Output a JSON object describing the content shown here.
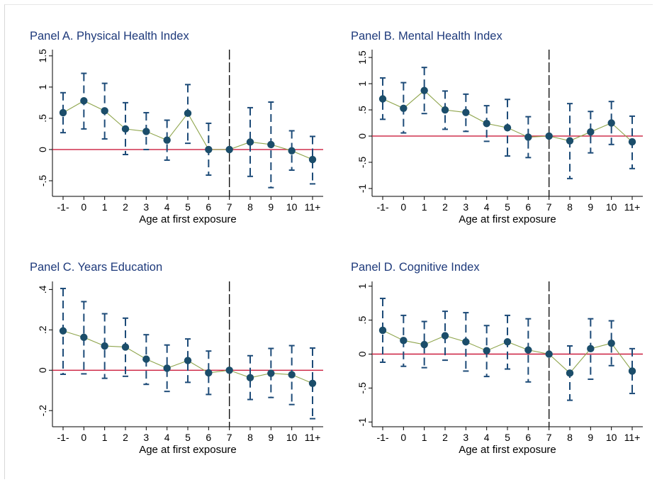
{
  "colors": {
    "panel_title": "#1e3a7b",
    "zero_line": "#cc1f3f",
    "marker": "#1b4d6a",
    "ci": "#1d4b78",
    "connector": "#8fa54d",
    "reference_line": "#111111"
  },
  "chart_data": [
    {
      "type": "scatter",
      "title": "Panel A. Physical Health Index",
      "xlabel": "Age at first exposure",
      "ylabel": "",
      "categories": [
        "-1-",
        "0",
        "1",
        "2",
        "3",
        "4",
        "5",
        "6",
        "7",
        "8",
        "9",
        "10",
        "11+"
      ],
      "values": [
        0.59,
        0.78,
        0.62,
        0.33,
        0.29,
        0.15,
        0.58,
        0.0,
        0.0,
        0.12,
        0.08,
        -0.02,
        -0.16
      ],
      "ci_low": [
        0.27,
        0.33,
        0.17,
        -0.08,
        0.0,
        -0.17,
        0.1,
        -0.41,
        0.0,
        -0.43,
        -0.61,
        -0.33,
        -0.55
      ],
      "ci_high": [
        0.91,
        1.22,
        1.06,
        0.75,
        0.59,
        0.47,
        1.04,
        0.42,
        0.0,
        0.67,
        0.76,
        0.3,
        0.21
      ],
      "ylim": [
        -0.75,
        1.6
      ],
      "yticks": [
        -0.5,
        0,
        0.5,
        1,
        1.5
      ],
      "ytick_labels": [
        "-.5",
        "0",
        ".5",
        "1",
        "1.5"
      ],
      "reference_line_at": "7",
      "zero_line": true,
      "grid": false
    },
    {
      "type": "scatter",
      "title": "Panel B. Mental Health Index",
      "xlabel": "Age at first exposure",
      "ylabel": "",
      "categories": [
        "-1-",
        "0",
        "1",
        "2",
        "3",
        "4",
        "5",
        "6",
        "7",
        "8",
        "9",
        "10",
        "11+"
      ],
      "values": [
        0.71,
        0.53,
        0.87,
        0.5,
        0.45,
        0.24,
        0.16,
        -0.02,
        0.0,
        -0.09,
        0.08,
        0.25,
        -0.11
      ],
      "ci_low": [
        0.32,
        0.06,
        0.43,
        0.13,
        0.09,
        -0.1,
        -0.38,
        -0.41,
        0.0,
        -0.81,
        -0.32,
        -0.16,
        -0.62
      ],
      "ci_high": [
        1.11,
        1.02,
        1.31,
        0.86,
        0.8,
        0.58,
        0.7,
        0.37,
        0.0,
        0.62,
        0.47,
        0.66,
        0.38
      ],
      "ylim": [
        -1.15,
        1.65
      ],
      "yticks": [
        -1,
        -0.5,
        0,
        0.5,
        1,
        1.5
      ],
      "ytick_labels": [
        "-1",
        "-.5",
        "0",
        ".5",
        "1",
        "1.5"
      ],
      "reference_line_at": "7",
      "zero_line": true,
      "grid": false
    },
    {
      "type": "scatter",
      "title": "Panel C. Years Education",
      "xlabel": "Age at first exposure",
      "ylabel": "",
      "categories": [
        "-1-",
        "0",
        "1",
        "2",
        "3",
        "4",
        "5",
        "6",
        "7",
        "8",
        "9",
        "10",
        "11+"
      ],
      "values": [
        0.195,
        0.163,
        0.12,
        0.115,
        0.055,
        0.01,
        0.048,
        -0.013,
        0.0,
        -0.037,
        -0.015,
        -0.022,
        -0.065
      ],
      "ci_low": [
        -0.02,
        -0.018,
        -0.04,
        -0.03,
        -0.07,
        -0.105,
        -0.06,
        -0.12,
        0.0,
        -0.145,
        -0.135,
        -0.17,
        -0.24
      ],
      "ci_high": [
        0.405,
        0.34,
        0.28,
        0.258,
        0.176,
        0.125,
        0.155,
        0.095,
        0.0,
        0.072,
        0.108,
        0.122,
        0.11
      ],
      "ylim": [
        -0.28,
        0.44
      ],
      "yticks": [
        -0.2,
        0,
        0.2,
        0.4
      ],
      "ytick_labels": [
        "-.2",
        "0",
        ".2",
        ".4"
      ],
      "reference_line_at": "7",
      "zero_line": true,
      "grid": false
    },
    {
      "type": "scatter",
      "title": "Panel D. Cognitive Index",
      "xlabel": "Age at first exposure",
      "ylabel": "",
      "categories": [
        "-1-",
        "0",
        "1",
        "2",
        "3",
        "4",
        "5",
        "6",
        "7",
        "8",
        "9",
        "10",
        "11+"
      ],
      "values": [
        0.35,
        0.2,
        0.14,
        0.27,
        0.18,
        0.05,
        0.18,
        0.06,
        0.0,
        -0.28,
        0.08,
        0.16,
        -0.25
      ],
      "ci_low": [
        -0.12,
        -0.18,
        -0.2,
        -0.09,
        -0.25,
        -0.33,
        -0.22,
        -0.41,
        0.0,
        -0.68,
        -0.37,
        -0.17,
        -0.58
      ],
      "ci_high": [
        0.82,
        0.57,
        0.48,
        0.63,
        0.61,
        0.42,
        0.57,
        0.52,
        0.0,
        0.12,
        0.52,
        0.49,
        0.08
      ],
      "ylim": [
        -1.07,
        1.07
      ],
      "yticks": [
        -1,
        -0.5,
        0,
        0.5,
        1
      ],
      "ytick_labels": [
        "-1",
        "-.5",
        "0",
        ".5",
        "1"
      ],
      "reference_line_at": "7",
      "zero_line": true,
      "grid": false
    }
  ]
}
